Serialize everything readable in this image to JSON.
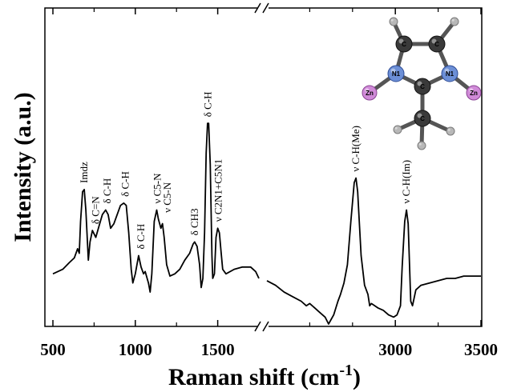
{
  "chart_data": {
    "type": "line",
    "title": "",
    "xlabel": "Raman shift (cm",
    "xlabel_sup": "-1",
    "xlabel_close": ")",
    "ylabel": "Intensity (a.u.)",
    "x_axis": {
      "broken": true,
      "segments": [
        [
          500,
          1750
        ],
        [
          2250,
          3500
        ]
      ],
      "ticks": [
        500,
        1000,
        1500,
        3000,
        3500
      ],
      "tick_labels": [
        "500",
        "1000",
        "1500",
        "3000",
        "3500"
      ],
      "minor_ticks": [
        750,
        1250,
        2500,
        2750,
        3250
      ]
    },
    "y_axis": {
      "ticks_shown": false,
      "range": [
        0,
        100
      ]
    },
    "grid": false,
    "legend": "none",
    "line_color": "#000000",
    "series": [
      {
        "segment": 0,
        "points": [
          [
            500,
            22
          ],
          [
            560,
            24
          ],
          [
            600,
            27
          ],
          [
            630,
            29
          ],
          [
            650,
            33
          ],
          [
            660,
            31
          ],
          [
            668,
            45
          ],
          [
            680,
            58
          ],
          [
            690,
            59
          ],
          [
            700,
            50
          ],
          [
            715,
            28
          ],
          [
            725,
            36
          ],
          [
            740,
            41
          ],
          [
            760,
            38
          ],
          [
            780,
            43
          ],
          [
            800,
            48
          ],
          [
            820,
            50
          ],
          [
            835,
            48
          ],
          [
            850,
            42
          ],
          [
            870,
            44
          ],
          [
            890,
            48
          ],
          [
            910,
            52
          ],
          [
            930,
            53
          ],
          [
            945,
            52
          ],
          [
            960,
            40
          ],
          [
            975,
            24
          ],
          [
            985,
            18
          ],
          [
            1000,
            22
          ],
          [
            1020,
            30
          ],
          [
            1035,
            25
          ],
          [
            1050,
            22
          ],
          [
            1060,
            23
          ],
          [
            1080,
            18
          ],
          [
            1090,
            14
          ],
          [
            1100,
            22
          ],
          [
            1115,
            45
          ],
          [
            1130,
            50
          ],
          [
            1140,
            46
          ],
          [
            1155,
            42
          ],
          [
            1165,
            44
          ],
          [
            1175,
            38
          ],
          [
            1190,
            26
          ],
          [
            1210,
            21
          ],
          [
            1240,
            22
          ],
          [
            1270,
            24
          ],
          [
            1300,
            28
          ],
          [
            1330,
            31
          ],
          [
            1350,
            35
          ],
          [
            1360,
            36
          ],
          [
            1375,
            34
          ],
          [
            1390,
            26
          ],
          [
            1400,
            16
          ],
          [
            1410,
            20
          ],
          [
            1420,
            40
          ],
          [
            1430,
            75
          ],
          [
            1438,
            88
          ],
          [
            1445,
            88
          ],
          [
            1455,
            70
          ],
          [
            1465,
            30
          ],
          [
            1470,
            20
          ],
          [
            1480,
            22
          ],
          [
            1490,
            38
          ],
          [
            1500,
            42
          ],
          [
            1510,
            40
          ],
          [
            1520,
            32
          ],
          [
            1530,
            24
          ],
          [
            1550,
            22
          ],
          [
            1600,
            24
          ],
          [
            1650,
            25
          ],
          [
            1700,
            25
          ],
          [
            1730,
            23
          ],
          [
            1750,
            20
          ]
        ]
      },
      {
        "segment": 1,
        "points": [
          [
            2250,
            19
          ],
          [
            2300,
            17
          ],
          [
            2350,
            14
          ],
          [
            2400,
            12
          ],
          [
            2450,
            10
          ],
          [
            2480,
            8
          ],
          [
            2500,
            9
          ],
          [
            2530,
            7
          ],
          [
            2560,
            5
          ],
          [
            2590,
            3
          ],
          [
            2610,
            0
          ],
          [
            2640,
            4
          ],
          [
            2665,
            10
          ],
          [
            2680,
            13
          ],
          [
            2700,
            18
          ],
          [
            2720,
            26
          ],
          [
            2740,
            45
          ],
          [
            2760,
            62
          ],
          [
            2770,
            64
          ],
          [
            2780,
            58
          ],
          [
            2800,
            30
          ],
          [
            2820,
            17
          ],
          [
            2840,
            13
          ],
          [
            2850,
            8
          ],
          [
            2860,
            9
          ],
          [
            2880,
            8
          ],
          [
            2900,
            7
          ],
          [
            2930,
            6
          ],
          [
            2960,
            4
          ],
          [
            2990,
            3
          ],
          [
            3010,
            4
          ],
          [
            3030,
            8
          ],
          [
            3040,
            25
          ],
          [
            3055,
            45
          ],
          [
            3065,
            50
          ],
          [
            3075,
            44
          ],
          [
            3090,
            10
          ],
          [
            3100,
            8
          ],
          [
            3120,
            15
          ],
          [
            3150,
            17
          ],
          [
            3200,
            18
          ],
          [
            3250,
            19
          ],
          [
            3300,
            20
          ],
          [
            3350,
            20
          ],
          [
            3400,
            21
          ],
          [
            3450,
            21
          ],
          [
            3500,
            21
          ]
        ]
      }
    ],
    "annotations": [
      {
        "x": 690,
        "y": 59,
        "lines": [
          "Imdz"
        ]
      },
      {
        "x": 760,
        "y": 41,
        "lines": [
          "δ C=N"
        ]
      },
      {
        "x": 830,
        "y": 50,
        "lines": [
          "δ C-H"
        ]
      },
      {
        "x": 940,
        "y": 53,
        "lines": [
          "δ C-H"
        ]
      },
      {
        "x": 1035,
        "y": 30,
        "lines": [
          "δ C-H"
        ]
      },
      {
        "x": 1135,
        "y": 50,
        "lines": [
          "ν C5-N"
        ]
      },
      {
        "x": 1195,
        "y": 46,
        "lines": [
          "ν C5-N"
        ]
      },
      {
        "x": 1360,
        "y": 36,
        "lines": [
          "δ CH3"
        ]
      },
      {
        "x": 1440,
        "y": 88,
        "lines": [
          "δ C-H"
        ]
      },
      {
        "x": 1505,
        "y": 42,
        "lines": [
          "ν C2N1+C5N1"
        ]
      },
      {
        "x": 2770,
        "y": 64,
        "lines": [
          "ν C-H(Me)"
        ]
      },
      {
        "x": 3065,
        "y": 50,
        "lines": [
          "ν C-H(Im)"
        ]
      }
    ],
    "inset": {
      "type": "molecule",
      "atom_labels": {
        "carbon": "C",
        "nitrogen": "N",
        "nitrogen_sub": "1",
        "zinc": "Zn"
      }
    }
  }
}
